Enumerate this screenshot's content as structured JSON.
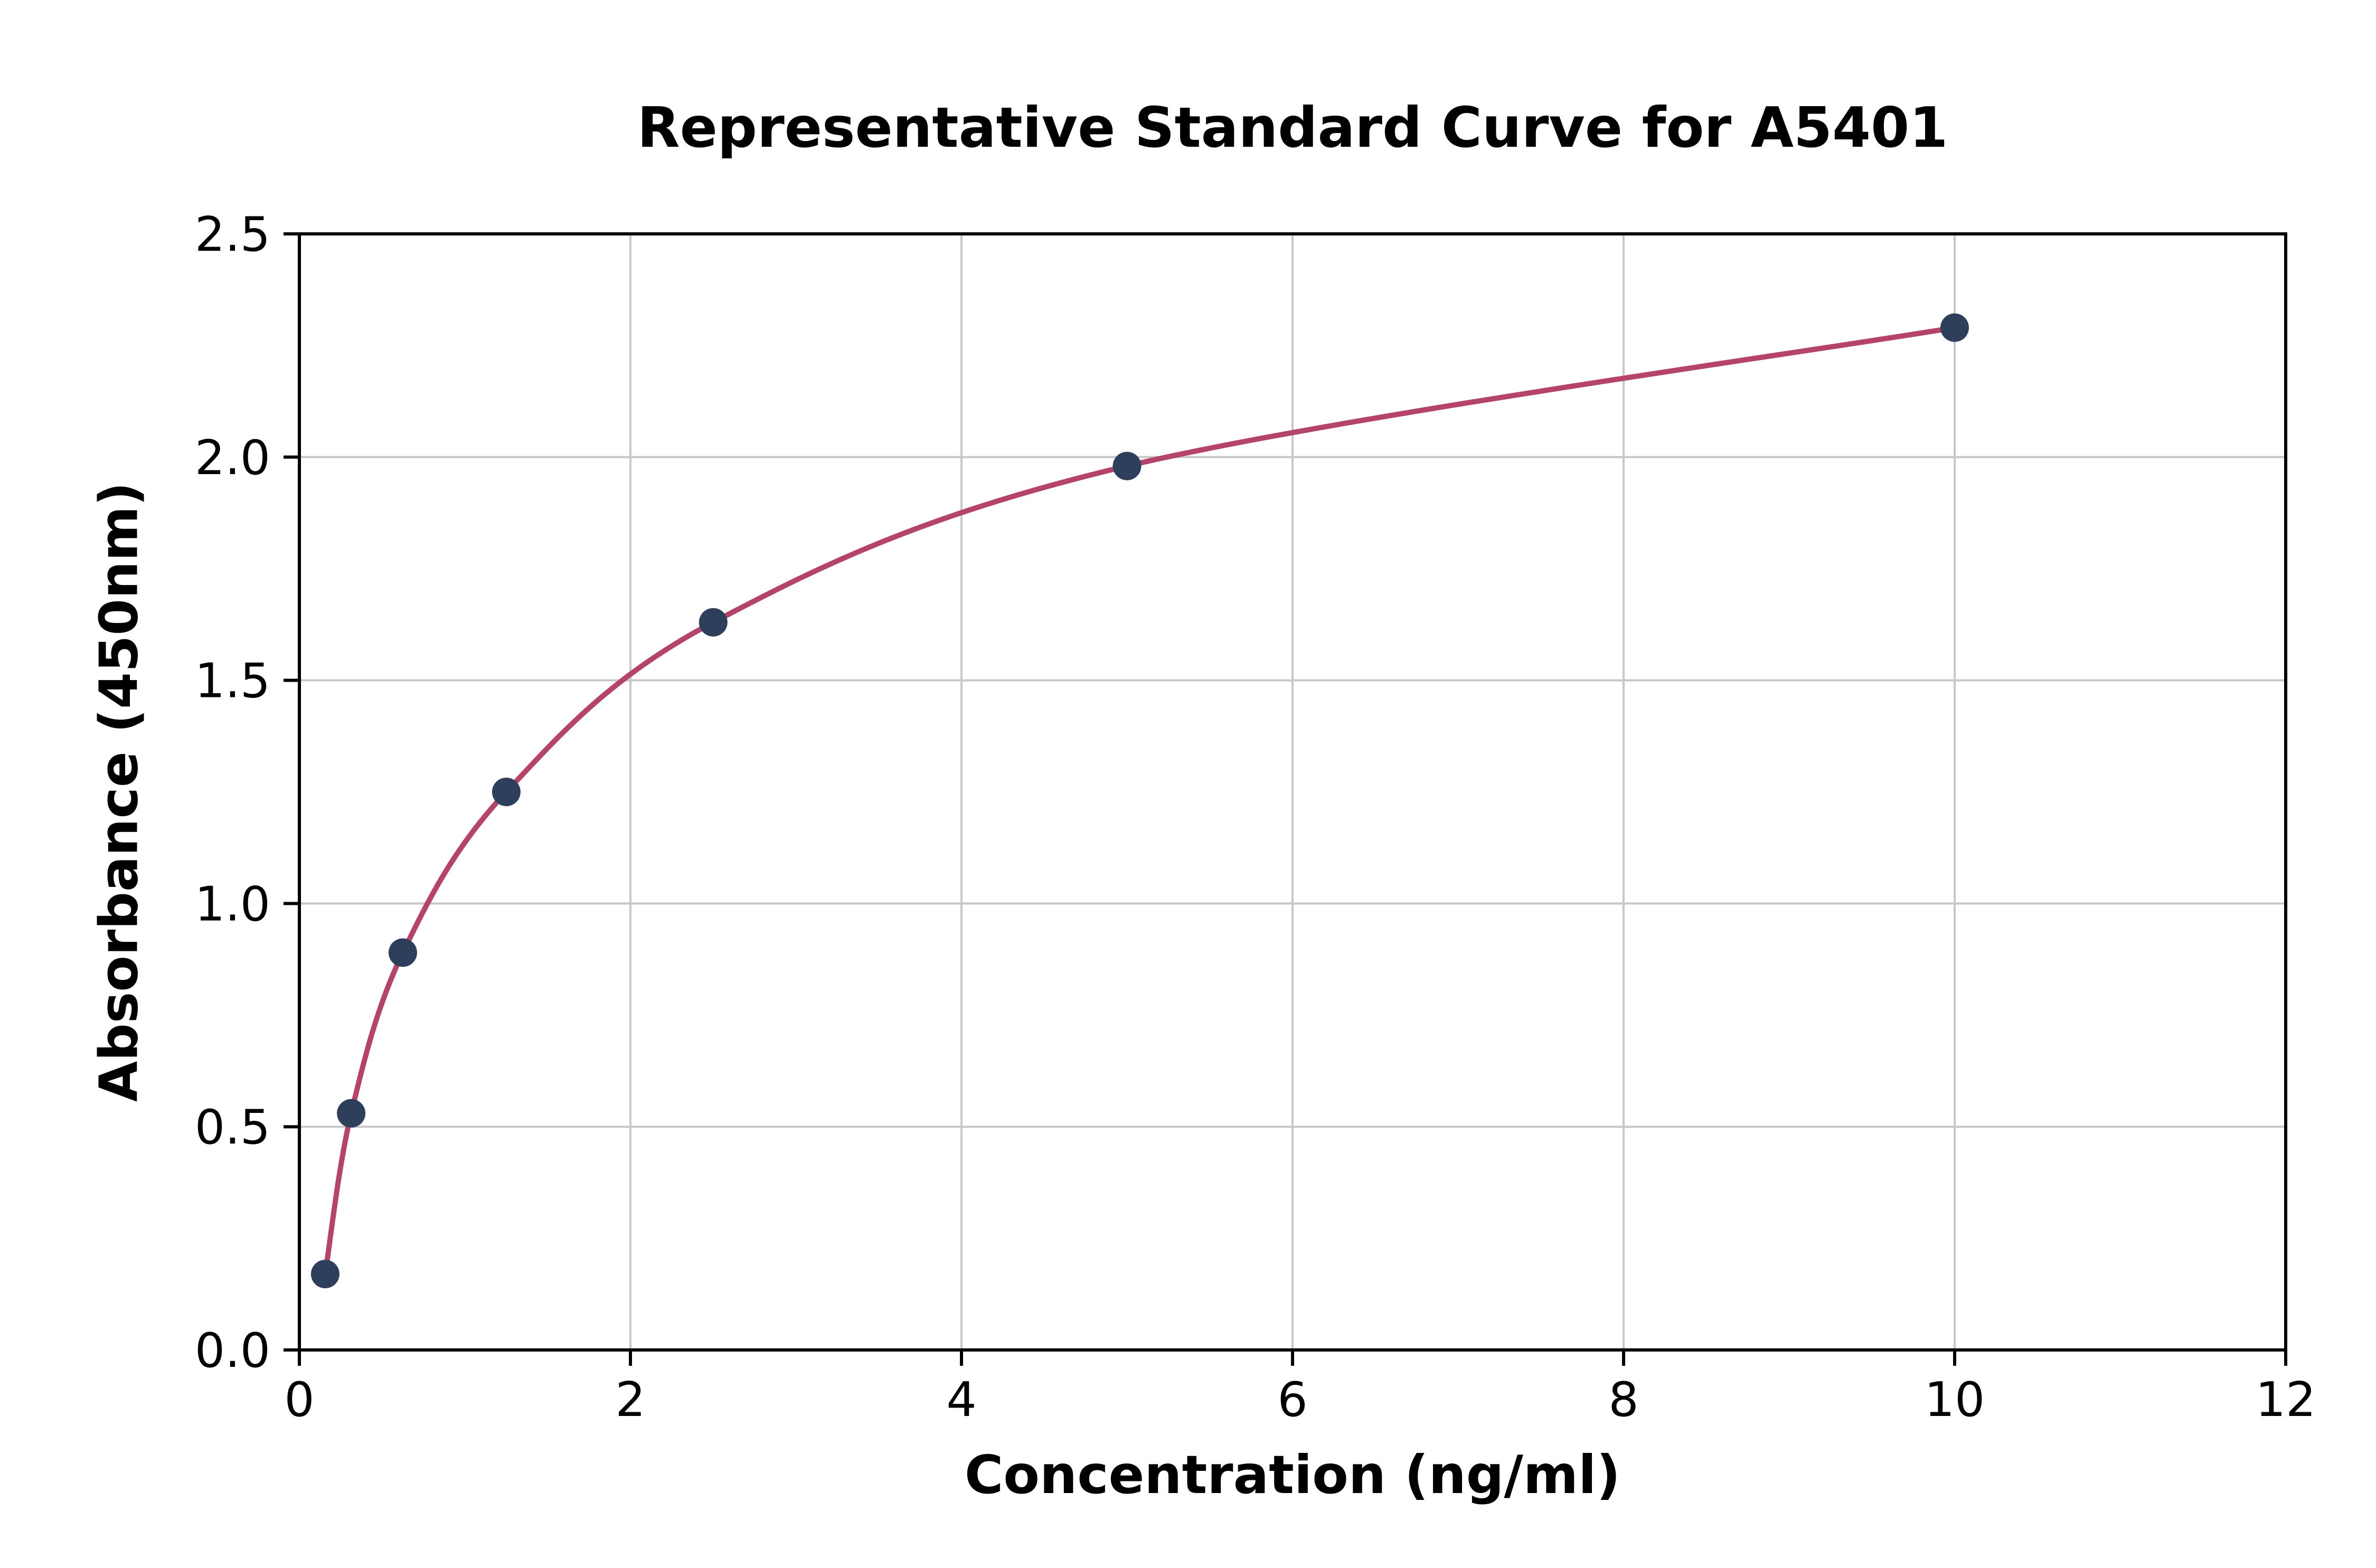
{
  "chart_data": {
    "type": "scatter",
    "curve_style": "smooth-line-through-points",
    "title": "Representative Standard Curve for A5401",
    "xlabel": "Concentration (ng/ml)",
    "ylabel": "Absorbance (450nm)",
    "x": [
      0.156,
      0.313,
      0.625,
      1.25,
      2.5,
      5,
      10
    ],
    "y": [
      0.17,
      0.53,
      0.89,
      1.25,
      1.63,
      1.98,
      2.29
    ],
    "xlim": [
      0,
      12
    ],
    "ylim": [
      0,
      2.5
    ],
    "xticks": [
      0,
      2,
      4,
      6,
      8,
      10,
      12
    ],
    "xtick_labels": [
      "0",
      "2",
      "4",
      "6",
      "8",
      "10",
      "12"
    ],
    "yticks": [
      0,
      0.5,
      1.0,
      1.5,
      2.0,
      2.5
    ],
    "ytick_labels": [
      "0.0",
      "0.5",
      "1.0",
      "1.5",
      "2.0",
      "2.5"
    ],
    "grid": true,
    "legend": "none",
    "colors": {
      "curve": "#b5446b",
      "marker": "#2e3f5c",
      "grid": "#c8c8c8",
      "spine": "#000000",
      "text": "#000000",
      "background": "#ffffff"
    }
  }
}
